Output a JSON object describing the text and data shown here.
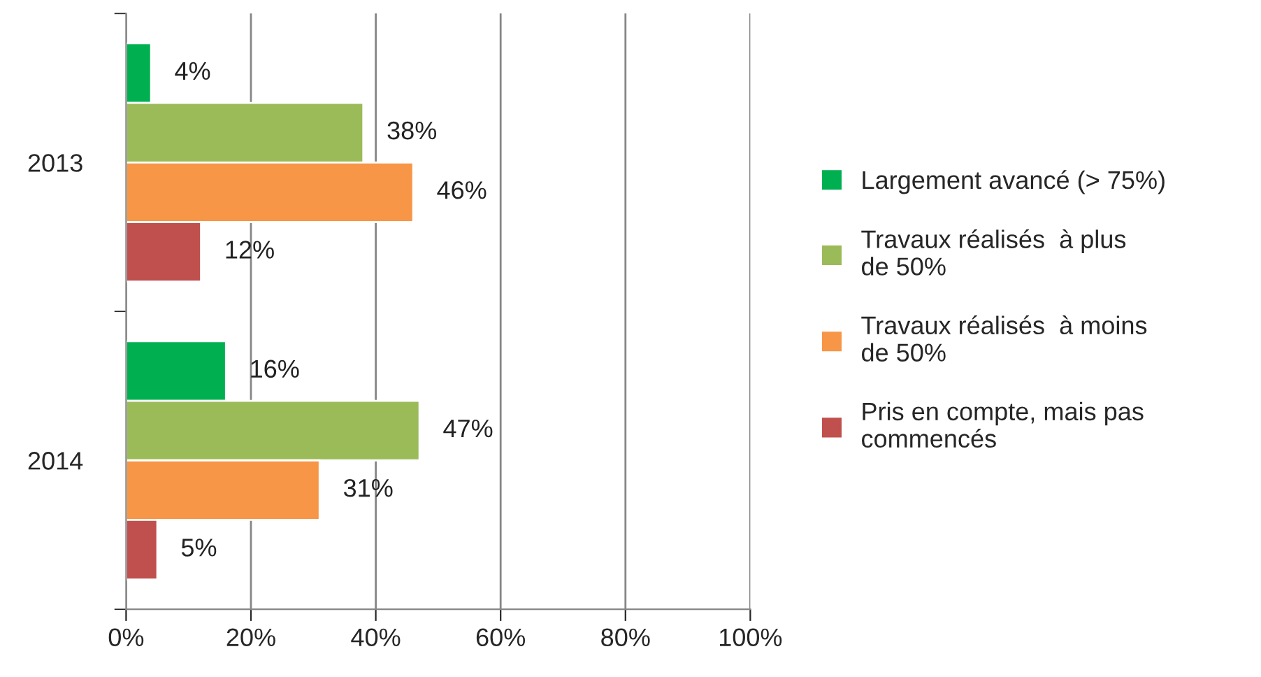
{
  "chart_data": {
    "type": "bar",
    "orientation": "horizontal",
    "categories": [
      "2013",
      "2014"
    ],
    "series": [
      {
        "name": "Largement avancé (> 75%)",
        "color": "#00b050",
        "values": [
          4,
          16
        ],
        "value_labels": [
          "4%",
          "16%"
        ]
      },
      {
        "name": "Travaux réalisés  à plus de 50%",
        "color": "#9bbb59",
        "values": [
          38,
          47
        ],
        "value_labels": [
          "38%",
          "47%"
        ]
      },
      {
        "name": "Travaux réalisés  à moins de 50%",
        "color": "#f79646",
        "values": [
          46,
          31
        ],
        "value_labels": [
          "46%",
          "31%"
        ]
      },
      {
        "name": "Pris en compte, mais pas commencés",
        "color": "#c0504d",
        "values": [
          12,
          5
        ],
        "value_labels": [
          "12%",
          "5%"
        ]
      }
    ],
    "xlim": [
      0,
      100
    ],
    "xticks": [
      {
        "value": 0,
        "label": "0%"
      },
      {
        "value": 20,
        "label": "20%"
      },
      {
        "value": 40,
        "label": "40%"
      },
      {
        "value": 60,
        "label": "60%"
      },
      {
        "value": 80,
        "label": "80%"
      },
      {
        "value": 100,
        "label": "100%"
      }
    ],
    "grid": "x",
    "legend": "right"
  }
}
